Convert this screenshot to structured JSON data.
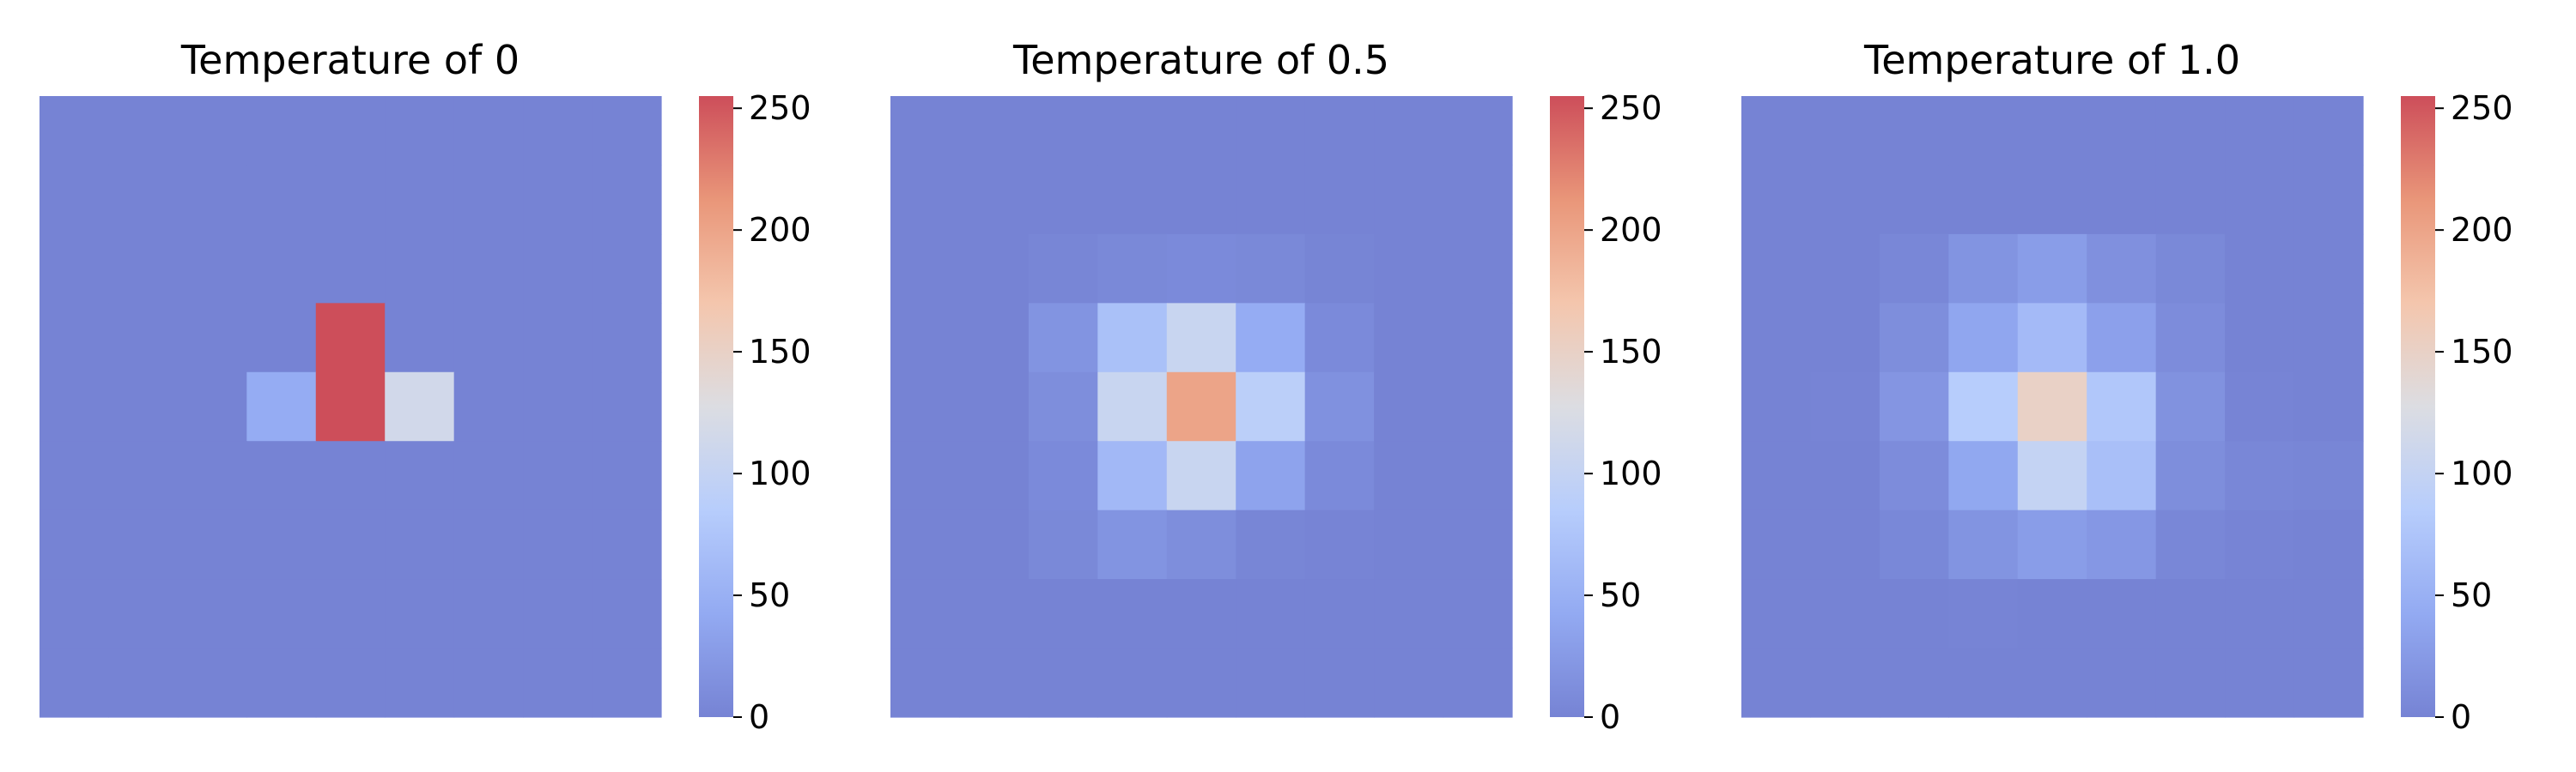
{
  "colorscale": {
    "name": "coolwarm",
    "stops": [
      "#7683d4",
      "#93aaf2",
      "#b7cdfc",
      "#dcdde2",
      "#f4c6ad",
      "#e99679",
      "#cd4e5a"
    ],
    "range": [
      0,
      255
    ]
  },
  "chart_data": [
    {
      "type": "heatmap",
      "title": "Temperature of 0",
      "colorbar_ticks": [
        "0",
        "50",
        "100",
        "150",
        "200",
        "250"
      ],
      "colorbar_tick_values": [
        0,
        50,
        100,
        150,
        200,
        250
      ],
      "vmin": 0,
      "vmax": 255,
      "grid": false,
      "values": [
        [
          0,
          0,
          0,
          0,
          0,
          0,
          0,
          0,
          0
        ],
        [
          0,
          0,
          0,
          0,
          0,
          0,
          0,
          0,
          0
        ],
        [
          0,
          0,
          0,
          0,
          0,
          0,
          0,
          0,
          0
        ],
        [
          0,
          0,
          0,
          0,
          255,
          0,
          0,
          0,
          0
        ],
        [
          0,
          0,
          0,
          45,
          255,
          115,
          0,
          0,
          0
        ],
        [
          0,
          0,
          0,
          0,
          0,
          0,
          0,
          0,
          0
        ],
        [
          0,
          0,
          0,
          0,
          0,
          0,
          0,
          0,
          0
        ],
        [
          0,
          0,
          0,
          0,
          0,
          0,
          0,
          0,
          0
        ],
        [
          0,
          0,
          0,
          0,
          0,
          0,
          0,
          0,
          0
        ]
      ]
    },
    {
      "type": "heatmap",
      "title": "Temperature of 0.5",
      "colorbar_ticks": [
        "0",
        "50",
        "100",
        "150",
        "200",
        "250"
      ],
      "colorbar_tick_values": [
        0,
        50,
        100,
        150,
        200,
        250
      ],
      "vmin": 0,
      "vmax": 255,
      "grid": false,
      "values": [
        [
          0,
          0,
          0,
          0,
          0,
          0,
          0,
          0,
          0
        ],
        [
          0,
          0,
          0,
          0,
          0,
          0,
          0,
          0,
          0
        ],
        [
          0,
          0,
          3,
          6,
          8,
          6,
          2,
          0,
          0
        ],
        [
          0,
          0,
          18,
          70,
          105,
          45,
          8,
          0,
          0
        ],
        [
          0,
          0,
          12,
          105,
          200,
          90,
          15,
          0,
          0
        ],
        [
          0,
          0,
          8,
          60,
          105,
          35,
          8,
          0,
          0
        ],
        [
          0,
          0,
          6,
          18,
          12,
          3,
          1,
          0,
          0
        ],
        [
          0,
          0,
          0,
          0,
          0,
          0,
          0,
          0,
          0
        ],
        [
          0,
          0,
          0,
          0,
          0,
          0,
          0,
          0,
          0
        ]
      ]
    },
    {
      "type": "heatmap",
      "title": "Temperature of 1.0",
      "colorbar_ticks": [
        "0",
        "50",
        "100",
        "150",
        "200",
        "250"
      ],
      "colorbar_tick_values": [
        0,
        50,
        100,
        150,
        200,
        250
      ],
      "vmin": 0,
      "vmax": 255,
      "grid": false,
      "values": [
        [
          0,
          0,
          0,
          0,
          0,
          0,
          0,
          0,
          0
        ],
        [
          0,
          0,
          0,
          0,
          0,
          0,
          0,
          0,
          0
        ],
        [
          0,
          0,
          4,
          18,
          28,
          14,
          6,
          0,
          0
        ],
        [
          0,
          0,
          12,
          38,
          62,
          32,
          10,
          0,
          0
        ],
        [
          0,
          1,
          20,
          85,
          150,
          78,
          16,
          1,
          0
        ],
        [
          0,
          0,
          10,
          40,
          100,
          68,
          12,
          4,
          3
        ],
        [
          0,
          0,
          5,
          18,
          28,
          22,
          4,
          1,
          0
        ],
        [
          0,
          0,
          0,
          1,
          0,
          0,
          0,
          0,
          0
        ],
        [
          0,
          0,
          0,
          0,
          0,
          0,
          0,
          0,
          0
        ]
      ]
    }
  ]
}
